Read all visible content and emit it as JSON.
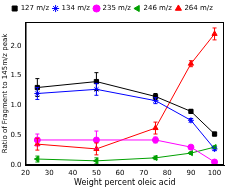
{
  "chart_data": {
    "type": "line",
    "x_label": "Weight percent oleic acid",
    "y_label": "Ratio of Fragment to 145m/z peak",
    "x": [
      25,
      50,
      75,
      90,
      100
    ],
    "xlim": [
      20,
      104
    ],
    "xticks": [
      20,
      30,
      40,
      50,
      60,
      70,
      80,
      90,
      100
    ],
    "ylim": [
      0,
      2.4
    ],
    "yticks": [
      {
        "value": 0,
        "label": "0.0"
      },
      {
        "value": 0.5,
        "label": "0.5"
      },
      {
        "value": 1,
        "label": "1.0"
      },
      {
        "value": 1.5,
        "label": "1.5"
      },
      {
        "value": 2,
        "label": "2.0"
      }
    ],
    "legend": "top",
    "grid": false,
    "series": [
      {
        "name": "127 m/z",
        "color": "#000000",
        "marker": "square",
        "values": [
          1.3,
          1.4,
          1.15,
          0.9,
          0.52
        ],
        "errors": [
          0.15,
          0.15,
          0.05,
          0.03,
          0.03
        ]
      },
      {
        "name": "134 m/z",
        "color": "#0000ff",
        "marker": "star",
        "values": [
          1.2,
          1.27,
          1.08,
          0.75,
          0.27
        ],
        "errors": [
          0.1,
          0.1,
          0.05,
          0.03,
          0.03
        ]
      },
      {
        "name": "235 m/z",
        "color": "#ff00ff",
        "marker": "circle",
        "values": [
          0.42,
          0.42,
          0.42,
          0.3,
          0.05
        ],
        "errors": [
          0.1,
          0.15,
          0.05,
          0.03,
          0.02
        ]
      },
      {
        "name": "246 m/z",
        "color": "#00a000",
        "marker": "triangle-left",
        "values": [
          0.1,
          0.07,
          0.12,
          0.2,
          0.3
        ],
        "errors": [
          0.05,
          0.05,
          0.03,
          0.02,
          0.02
        ]
      },
      {
        "name": "264 m/z",
        "color": "#ff0000",
        "marker": "triangle",
        "values": [
          0.35,
          0.27,
          0.62,
          1.7,
          2.2
        ],
        "errors": [
          0.1,
          0.1,
          0.1,
          0.05,
          0.1
        ]
      }
    ]
  }
}
